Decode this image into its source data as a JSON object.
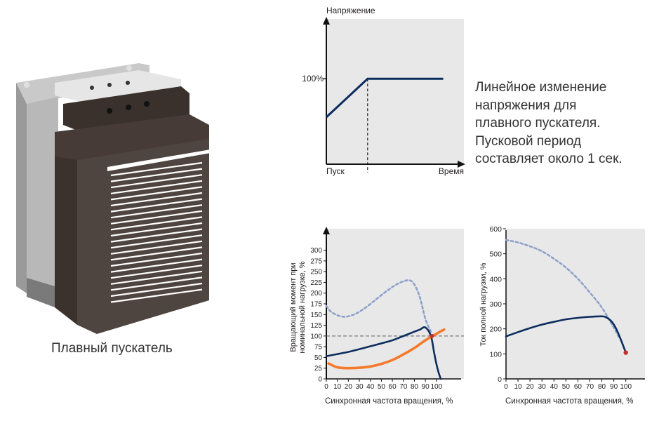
{
  "device": {
    "icon": "soft-starter-illustration",
    "caption": "Плавный пускатель"
  },
  "description": {
    "lines": [
      "Линейное изменение",
      "напряжения для",
      "плавного пускателя.",
      "Пусковой период",
      "составляет около 1 сек."
    ]
  },
  "colors": {
    "plot_bg": "#e8e8e8",
    "navy": "#0c2d5e",
    "orange": "#f47a2b",
    "dashed_blue": "#8fa2c9",
    "ref_gray": "#777777",
    "end_dot": "#c3312b",
    "device_body": "#4f4540",
    "device_top": "#3a302c",
    "device_frame": "#b3b3b3"
  },
  "chart_data": [
    {
      "type": "line",
      "title": "",
      "ylabel": "Напряжение",
      "xlabel": "",
      "x_tick_labels": [
        "Пуск",
        "Время"
      ],
      "y_tick_labels": [
        "100%"
      ],
      "ylim": [
        0,
        170
      ],
      "xlim": [
        0,
        100
      ],
      "marker_x": 30,
      "series": [
        {
          "style": "solid-navy",
          "x": [
            0,
            30,
            85
          ],
          "y": [
            55,
            100,
            100
          ]
        }
      ]
    },
    {
      "type": "line",
      "title": "",
      "ylabel": "Вращающий момент при номинальной нагрузке, %",
      "xlabel": "Синхронная частота вращения, %",
      "xlim": [
        0,
        125
      ],
      "ylim": [
        0,
        350
      ],
      "x_ticks": [
        0,
        10,
        20,
        30,
        40,
        50,
        60,
        70,
        80,
        90,
        100
      ],
      "y_ticks": [
        0,
        25,
        50,
        75,
        100,
        125,
        150,
        175,
        200,
        225,
        250,
        275,
        300
      ],
      "reference_line_y": 100,
      "grid": false,
      "series": [
        {
          "style": "dashed-lightblue",
          "x": [
            0,
            5,
            15,
            25,
            35,
            45,
            55,
            65,
            75,
            80,
            85,
            90,
            95
          ],
          "y": [
            170,
            155,
            145,
            150,
            165,
            185,
            205,
            222,
            230,
            220,
            190,
            140,
            110
          ]
        },
        {
          "style": "solid-navy",
          "x": [
            0,
            20,
            40,
            60,
            70,
            80,
            85,
            90,
            95,
            98,
            100,
            102,
            104
          ],
          "y": [
            53,
            63,
            76,
            90,
            100,
            110,
            115,
            120,
            100,
            60,
            35,
            15,
            0
          ]
        },
        {
          "style": "solid-orange",
          "x": [
            2,
            10,
            20,
            30,
            40,
            50,
            60,
            70,
            80,
            90,
            100,
            107
          ],
          "y": [
            36,
            27,
            25,
            26,
            29,
            35,
            44,
            57,
            72,
            90,
            105,
            115
          ]
        }
      ]
    },
    {
      "type": "line",
      "title": "",
      "ylabel": "Ток полной нагрузки, %",
      "xlabel": "Синхронная частота вращения, %",
      "xlim": [
        0,
        116
      ],
      "ylim": [
        0,
        600
      ],
      "x_ticks": [
        0,
        10,
        20,
        30,
        40,
        50,
        60,
        70,
        80,
        90,
        100
      ],
      "y_ticks": [
        0,
        100,
        200,
        300,
        400,
        500,
        600
      ],
      "grid": false,
      "series": [
        {
          "style": "dashed-lightblue",
          "x": [
            0,
            10,
            20,
            30,
            40,
            50,
            60,
            70,
            80,
            90,
            95
          ],
          "y": [
            555,
            545,
            530,
            510,
            480,
            445,
            400,
            345,
            285,
            205,
            160
          ]
        },
        {
          "style": "solid-navy",
          "x": [
            0,
            10,
            20,
            30,
            40,
            50,
            60,
            70,
            80,
            84,
            88,
            92,
            96,
            100
          ],
          "y": [
            170,
            187,
            203,
            217,
            228,
            238,
            244,
            248,
            250,
            245,
            230,
            200,
            155,
            105
          ]
        }
      ],
      "end_point": {
        "x": 100,
        "y": 105
      }
    }
  ]
}
